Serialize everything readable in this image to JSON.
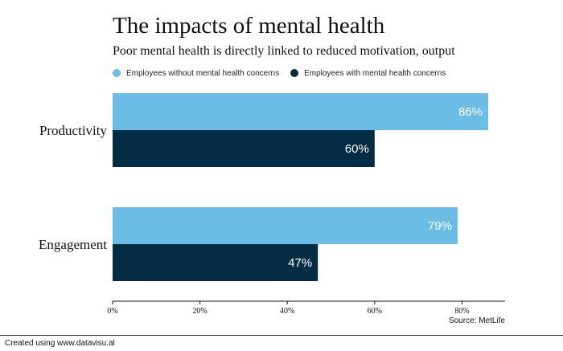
{
  "chart_data": {
    "type": "bar",
    "orientation": "horizontal",
    "title": "The impacts of mental health",
    "subtitle": "Poor mental health is directly linked to reduced motivation, output",
    "categories": [
      "Productivity",
      "Engagement"
    ],
    "series": [
      {
        "name": "Employees without mental health concerns",
        "values": [
          86,
          79
        ],
        "color": "#6bbde6",
        "labels": [
          "86%",
          "79%"
        ]
      },
      {
        "name": "Employees with mental health concerns",
        "values": [
          60,
          47
        ],
        "color": "#032d44",
        "labels": [
          "60%",
          "47%"
        ]
      }
    ],
    "xlim": [
      0,
      90
    ],
    "xticks": [
      0,
      20,
      40,
      60,
      80
    ],
    "xtick_labels": [
      "0%",
      "20%",
      "40%",
      "60%",
      "80%"
    ],
    "legend_position": "top-left",
    "grid": false,
    "source": "Source: MetLife"
  },
  "footer": {
    "credit": "Created using www.datavisu.al"
  }
}
